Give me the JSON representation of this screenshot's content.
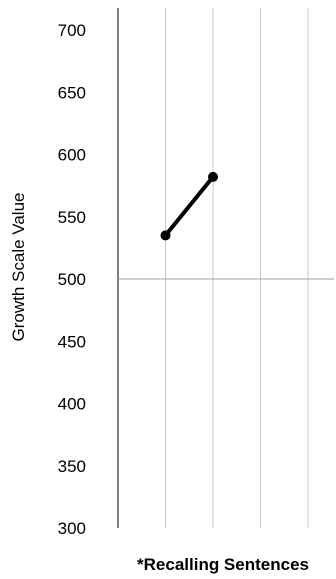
{
  "chart_data": {
    "type": "line",
    "title": "",
    "xlabel": "*Recalling Sentences",
    "ylabel": "Growth Scale Value",
    "ylim": [
      300,
      700
    ],
    "yticks": [
      300,
      350,
      400,
      450,
      500,
      550,
      600,
      650,
      700
    ],
    "x_slots": 4,
    "reference_line": 500,
    "grid": "vertical",
    "series": [
      {
        "x": [
          1,
          2
        ],
        "y": [
          535,
          582
        ]
      }
    ],
    "colors": {
      "line": "#000000",
      "grid": "#c8c8c8",
      "axis": "#000000",
      "reference": "#a0a0a0"
    }
  }
}
